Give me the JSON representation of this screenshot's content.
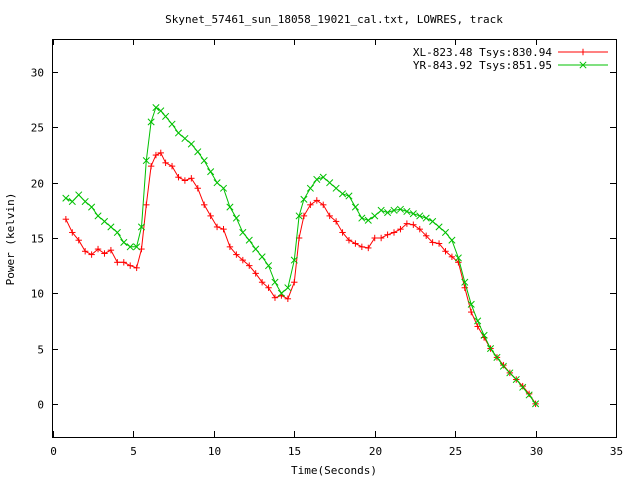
{
  "chart_data": {
    "type": "line",
    "title": "Skynet_57461_sun_18058_19021_cal.txt, LOWRES, track",
    "xlabel": "Time(Seconds)",
    "ylabel": "Power (kelvin)",
    "xlim": [
      0,
      35
    ],
    "ylim": [
      -3,
      33
    ],
    "xticks": [
      0,
      5,
      10,
      15,
      20,
      25,
      30,
      35
    ],
    "yticks": [
      0,
      5,
      10,
      15,
      20,
      25,
      30
    ],
    "grid": false,
    "legend": "top-right",
    "series": [
      {
        "name": "XL-823.48 Tsys:830.94",
        "color": "#ff0000",
        "marker": "+",
        "x": [
          0.8,
          1.2,
          1.6,
          2.0,
          2.4,
          2.8,
          3.2,
          3.6,
          4.0,
          4.4,
          4.8,
          5.2,
          5.5,
          5.8,
          6.1,
          6.4,
          6.7,
          7.0,
          7.4,
          7.8,
          8.2,
          8.6,
          9.0,
          9.4,
          9.8,
          10.2,
          10.6,
          11.0,
          11.4,
          11.8,
          12.2,
          12.6,
          13.0,
          13.4,
          13.8,
          14.2,
          14.6,
          15.0,
          15.3,
          15.6,
          16.0,
          16.4,
          16.8,
          17.2,
          17.6,
          18.0,
          18.4,
          18.8,
          19.2,
          19.6,
          20.0,
          20.4,
          20.8,
          21.2,
          21.6,
          22.0,
          22.4,
          22.8,
          23.2,
          23.6,
          24.0,
          24.4,
          24.8,
          25.2,
          25.6,
          26.0,
          26.4,
          26.8,
          27.2,
          27.6,
          28.0,
          28.4,
          28.8,
          29.2,
          29.6,
          30.0
        ],
        "values": [
          16.7,
          15.5,
          14.8,
          13.8,
          13.5,
          14.0,
          13.6,
          13.9,
          12.8,
          12.8,
          12.5,
          12.3,
          14.0,
          18.0,
          21.5,
          22.5,
          22.7,
          21.8,
          21.5,
          20.5,
          20.2,
          20.4,
          19.5,
          18.0,
          17.0,
          16.0,
          15.8,
          14.2,
          13.5,
          13.0,
          12.5,
          11.8,
          11.0,
          10.5,
          9.6,
          9.8,
          9.5,
          11.0,
          15.0,
          17.0,
          18.0,
          18.4,
          18.0,
          17.0,
          16.5,
          15.5,
          14.8,
          14.5,
          14.2,
          14.1,
          15.0,
          15.0,
          15.3,
          15.5,
          15.8,
          16.3,
          16.2,
          15.8,
          15.2,
          14.6,
          14.5,
          13.8,
          13.3,
          12.8,
          10.5,
          8.3,
          7.0,
          6.0,
          5.0,
          4.2,
          3.5,
          2.8,
          2.2,
          1.6,
          0.9,
          0.0
        ]
      },
      {
        "name": "YR-843.92 Tsys:851.95",
        "color": "#00c000",
        "marker": "x",
        "x": [
          0.8,
          1.2,
          1.6,
          2.0,
          2.4,
          2.8,
          3.2,
          3.6,
          4.0,
          4.4,
          4.8,
          5.2,
          5.5,
          5.8,
          6.1,
          6.4,
          6.7,
          7.0,
          7.4,
          7.8,
          8.2,
          8.6,
          9.0,
          9.4,
          9.8,
          10.2,
          10.6,
          11.0,
          11.4,
          11.8,
          12.2,
          12.6,
          13.0,
          13.4,
          13.8,
          14.2,
          14.6,
          15.0,
          15.3,
          15.6,
          16.0,
          16.4,
          16.8,
          17.2,
          17.6,
          18.0,
          18.4,
          18.8,
          19.2,
          19.6,
          20.0,
          20.4,
          20.8,
          21.2,
          21.6,
          22.0,
          22.4,
          22.8,
          23.2,
          23.6,
          24.0,
          24.4,
          24.8,
          25.2,
          25.6,
          26.0,
          26.4,
          26.8,
          27.2,
          27.6,
          28.0,
          28.4,
          28.8,
          29.2,
          29.6,
          30.0
        ],
        "values": [
          18.6,
          18.3,
          18.9,
          18.3,
          17.8,
          17.0,
          16.5,
          16.0,
          15.5,
          14.6,
          14.2,
          14.2,
          16.0,
          22.0,
          25.5,
          26.8,
          26.5,
          26.0,
          25.3,
          24.5,
          24.0,
          23.5,
          22.8,
          22.0,
          21.0,
          20.0,
          19.5,
          17.8,
          16.8,
          15.5,
          14.8,
          14.0,
          13.3,
          12.5,
          11.0,
          10.0,
          10.5,
          13.0,
          17.0,
          18.5,
          19.5,
          20.3,
          20.5,
          20.0,
          19.5,
          19.0,
          18.8,
          17.8,
          16.8,
          16.6,
          17.0,
          17.5,
          17.3,
          17.5,
          17.6,
          17.4,
          17.2,
          17.0,
          16.8,
          16.5,
          16.0,
          15.5,
          14.8,
          13.2,
          11.0,
          9.0,
          7.5,
          6.2,
          5.0,
          4.2,
          3.4,
          2.8,
          2.2,
          1.5,
          0.8,
          0.0
        ]
      }
    ]
  }
}
